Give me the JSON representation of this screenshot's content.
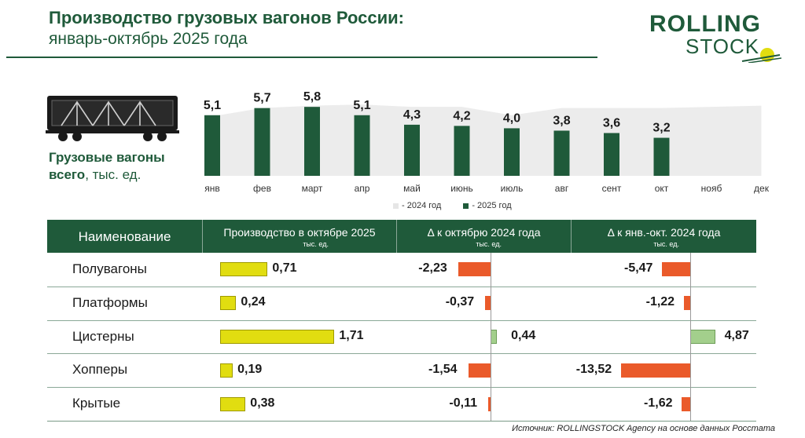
{
  "header": {
    "title": "Производство грузовых вагонов России:",
    "subtitle": "январь-октябрь 2025 года"
  },
  "logo": {
    "line1": "ROLLING",
    "line2": "STOCK"
  },
  "wagon_label": {
    "bold": "Грузовые вагоны всего",
    "unit": ", тыс. ед."
  },
  "chart_data": {
    "type": "bar",
    "title": "Грузовые вагоны всего, тыс. ед.",
    "categories": [
      "янв",
      "фев",
      "март",
      "апр",
      "май",
      "июнь",
      "июль",
      "авг",
      "сент",
      "окт",
      "нояб",
      "дек"
    ],
    "series": [
      {
        "name": "- 2024 год",
        "type": "area",
        "values": [
          5.0,
          5.7,
          5.9,
          6.0,
          5.8,
          5.8,
          5.1,
          5.7,
          5.7,
          5.7,
          5.8,
          5.9
        ]
      },
      {
        "name": "- 2025 год",
        "type": "bar",
        "values": [
          5.1,
          5.7,
          5.8,
          5.1,
          4.3,
          4.2,
          4.0,
          3.8,
          3.6,
          3.2,
          null,
          null
        ],
        "labels": [
          "5,1",
          "5,7",
          "5,8",
          "5,1",
          "4,3",
          "4,2",
          "4,0",
          "3,8",
          "3,6",
          "3,2",
          "",
          ""
        ]
      }
    ],
    "ylim": [
      0,
      7
    ],
    "colors": {
      "bar2025": "#1f5a3a",
      "area2024": "#ececec"
    }
  },
  "table": {
    "headers": {
      "name": "Наименование",
      "production": "Производство в октябре 2025",
      "production_unit": "тыс. ед.",
      "delta_oct": "Δ к октябрю 2024 года",
      "delta_oct_unit": "тыс. ед.",
      "delta_ytd": "Δ к янв.-окт. 2024 года",
      "delta_ytd_unit": "тыс. ед."
    },
    "rows": [
      {
        "name": "Полувагоны",
        "production": 0.71,
        "production_label": "0,71",
        "delta_oct": -2.23,
        "delta_oct_label": "-2,23",
        "delta_ytd": -5.47,
        "delta_ytd_label": "-5,47"
      },
      {
        "name": "Платформы",
        "production": 0.24,
        "production_label": "0,24",
        "delta_oct": -0.37,
        "delta_oct_label": "-0,37",
        "delta_ytd": -1.22,
        "delta_ytd_label": "-1,22"
      },
      {
        "name": "Цистерны",
        "production": 1.71,
        "production_label": "1,71",
        "delta_oct": 0.44,
        "delta_oct_label": "0,44",
        "delta_ytd": 4.87,
        "delta_ytd_label": "4,87"
      },
      {
        "name": "Хопперы",
        "production": 0.19,
        "production_label": "0,19",
        "delta_oct": -1.54,
        "delta_oct_label": "-1,54",
        "delta_ytd": -13.52,
        "delta_ytd_label": "-13,52"
      },
      {
        "name": "Крытые",
        "production": 0.38,
        "production_label": "0,38",
        "delta_oct": -0.11,
        "delta_oct_label": "-0,11",
        "delta_ytd": -1.62,
        "delta_ytd_label": "-1,62"
      }
    ]
  },
  "source": "Источник: ROLLINGSTOCK Agency на основе данных Росстата"
}
